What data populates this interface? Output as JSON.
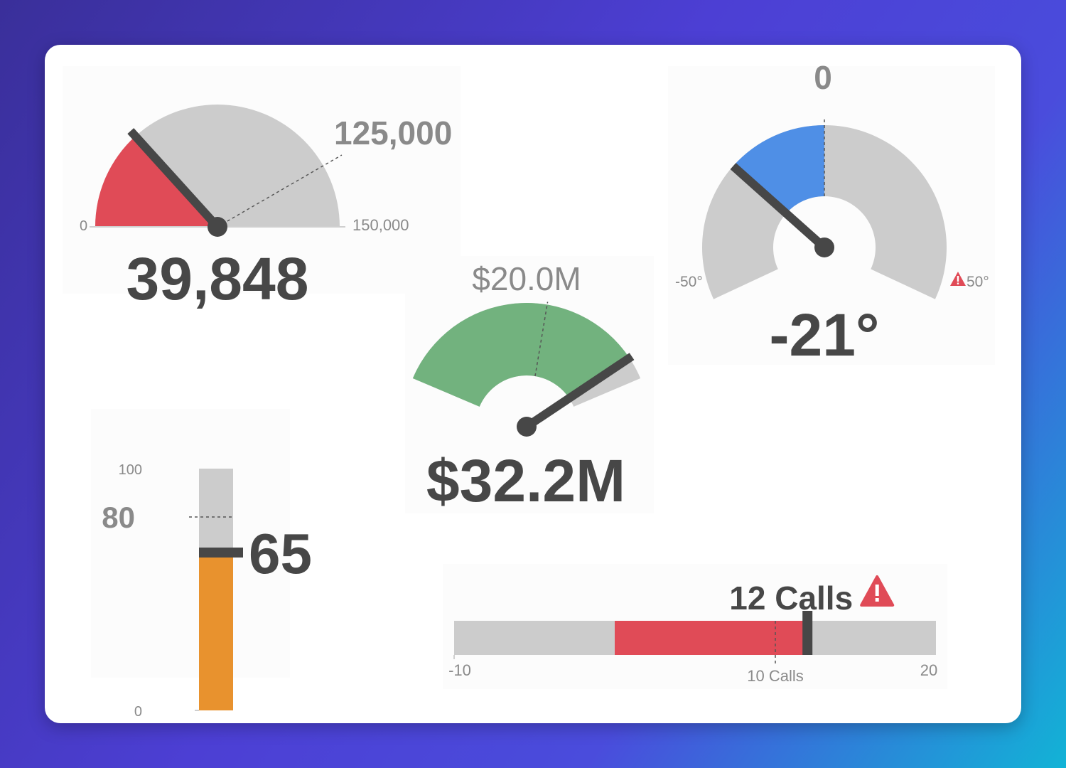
{
  "chart_data": [
    {
      "type": "gauge",
      "subtype": "semicircle",
      "value": 39848,
      "value_label": "39,848",
      "min": 0,
      "max": 150000,
      "min_label": "0",
      "max_label": "150,000",
      "target": 125000,
      "target_label": "125,000",
      "fill_color": "#e04b57",
      "track_color": "#cccccc"
    },
    {
      "type": "gauge",
      "subtype": "arc",
      "value": -21,
      "value_label": "-21°",
      "min": -50,
      "max": 50,
      "min_label": "-50°",
      "max_label": "50°",
      "target": 0,
      "target_label": "0",
      "fill_color": "#4f8fe6",
      "track_color": "#cccccc",
      "alert_icon": "warning-icon",
      "alert_color": "#e04b57"
    },
    {
      "type": "gauge",
      "subtype": "arc",
      "value": 32.2,
      "value_label": "$32.2M",
      "min": 0,
      "max": 35,
      "target": 20.0,
      "target_label": "$20.0M",
      "fill_color": "#72b27e",
      "track_color": "#cccccc"
    },
    {
      "type": "bullet",
      "orientation": "vertical",
      "value": 65,
      "value_label": "65",
      "min": 0,
      "max": 100,
      "min_label": "0",
      "max_label": "100",
      "target": 80,
      "target_label": "80",
      "fill_color": "#e8922e",
      "track_color": "#cccccc"
    },
    {
      "type": "bullet",
      "orientation": "horizontal",
      "value": 12,
      "value_label": "12 Calls",
      "min": -10,
      "max": 20,
      "min_label": "-10",
      "max_label": "20",
      "target": 10,
      "target_label": "10 Calls",
      "range_start": 0,
      "fill_color": "#e04b57",
      "track_color": "#cccccc",
      "alert_icon": "warning-icon",
      "alert_color": "#e04b57"
    }
  ]
}
